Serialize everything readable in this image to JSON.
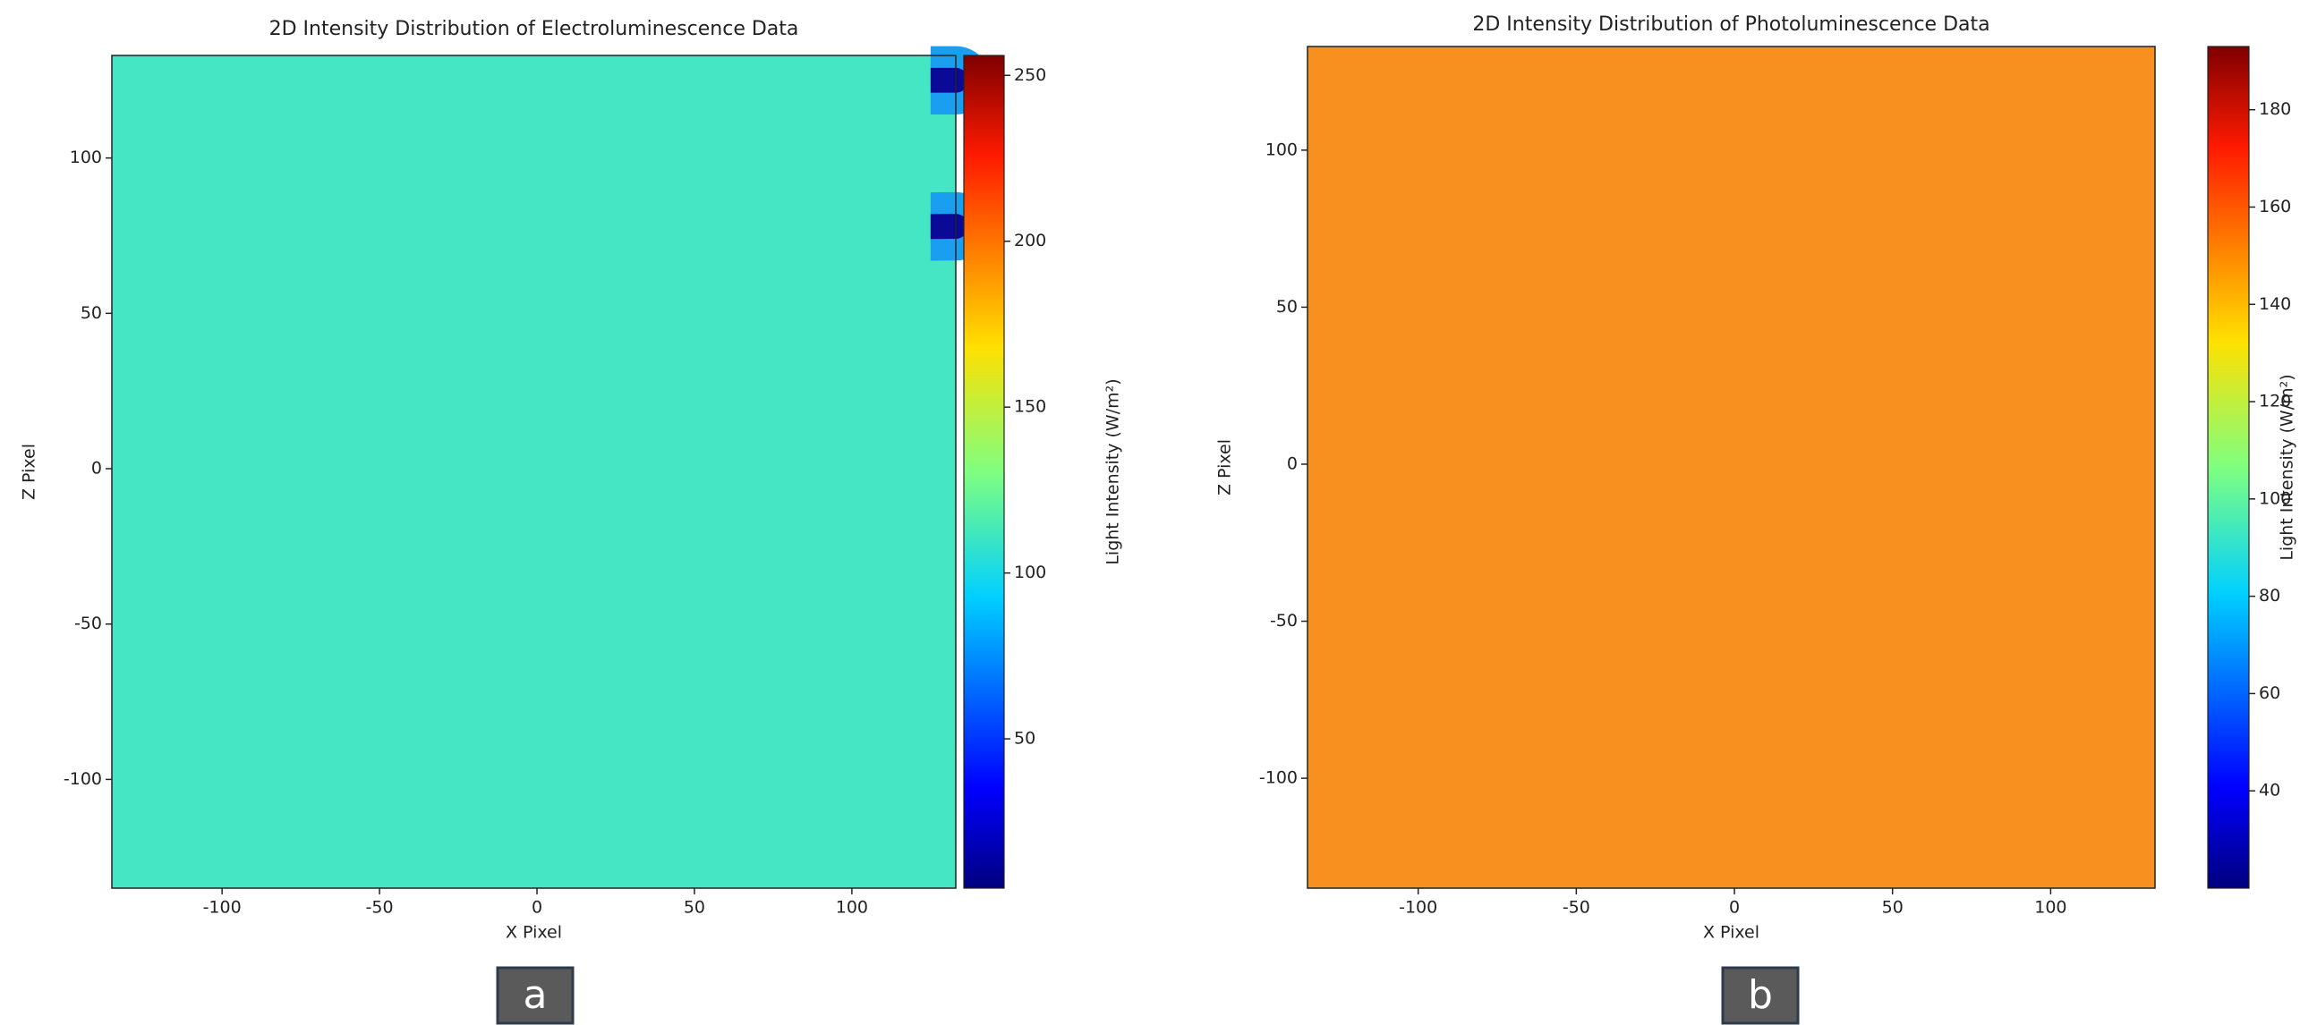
{
  "chart_data": [
    {
      "type": "heatmap",
      "title": "2D Intensity Distribution of Electroluminescence Data",
      "xlabel": "X Pixel",
      "ylabel": "Z Pixel",
      "xlim": [
        -135,
        133
      ],
      "ylim": [
        -135,
        133
      ],
      "xticks": [
        -100,
        -50,
        0,
        50,
        100
      ],
      "yticks": [
        -100,
        -50,
        0,
        50,
        100
      ],
      "colormap": "jet",
      "colorbar": {
        "label": "Light Intensity (W/m²)",
        "lim": [
          5,
          256
        ],
        "ticks": [
          50,
          100,
          150,
          200,
          250
        ]
      },
      "panel_label": "a"
    },
    {
      "type": "heatmap",
      "title": "2D Intensity Distribution of Photoluminescence Data",
      "xlabel": "X Pixel",
      "ylabel": "Z Pixel",
      "xlim": [
        -135,
        133
      ],
      "ylim": [
        -135,
        133
      ],
      "xticks": [
        -100,
        -50,
        0,
        50,
        100
      ],
      "yticks": [
        -100,
        -50,
        0,
        50,
        100
      ],
      "colormap": "jet",
      "colorbar": {
        "label": "Light Intensity (W/m²)",
        "lim": [
          20,
          193
        ],
        "ticks": [
          40,
          60,
          80,
          100,
          120,
          140,
          160,
          180
        ]
      },
      "panel_label": "b"
    }
  ]
}
